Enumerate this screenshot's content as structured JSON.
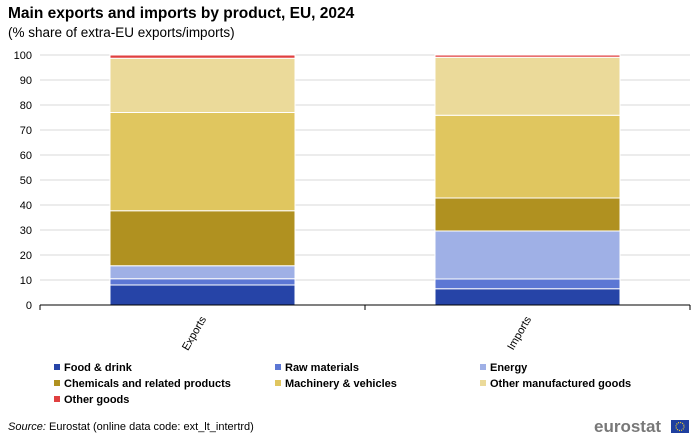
{
  "chart_data": {
    "type": "bar",
    "stacked": true,
    "title": "Main exports and imports by product, EU, 2024",
    "subtitle": "(% share of extra-EU exports/imports)",
    "categories": [
      "Exports",
      "Imports"
    ],
    "ylim": [
      0,
      100
    ],
    "yticks": [
      0,
      10,
      20,
      30,
      40,
      50,
      60,
      70,
      80,
      90,
      100
    ],
    "grid": true,
    "legend_position": "bottom",
    "series": [
      {
        "name": "Food & drink",
        "color": "#2644a7",
        "values": [
          8.0,
          6.5
        ]
      },
      {
        "name": "Raw materials",
        "color": "#5c77d4",
        "values": [
          2.5,
          3.9
        ]
      },
      {
        "name": "Energy",
        "color": "#9fb0e6",
        "values": [
          5.2,
          19.2
        ]
      },
      {
        "name": "Chemicals and related products",
        "color": "#b09120",
        "values": [
          22.0,
          13.2
        ]
      },
      {
        "name": "Machinery & vehicles",
        "color": "#e0c65f",
        "values": [
          39.3,
          33.1
        ]
      },
      {
        "name": "Other manufactured goods",
        "color": "#ebda9a",
        "values": [
          21.7,
          23.2
        ]
      },
      {
        "name": "Other goods",
        "color": "#e04040",
        "values": [
          1.3,
          0.9
        ]
      }
    ]
  },
  "footer": {
    "source_label": "Source:",
    "source_text": "Eurostat (online data code: ext_lt_intertrd)",
    "logo": "eurostat"
  }
}
